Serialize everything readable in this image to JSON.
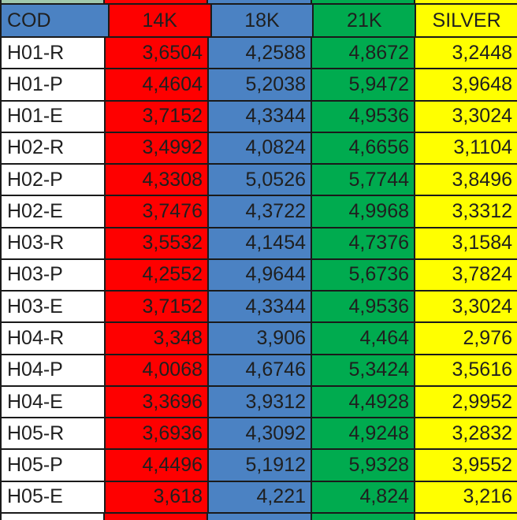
{
  "table": {
    "columns": [
      "COD",
      "14K",
      "18K",
      "21K",
      "SILVER"
    ],
    "rows": [
      [
        "H01-R",
        "3,6504",
        "4,2588",
        "4,8672",
        "3,2448"
      ],
      [
        "H01-P",
        "4,4604",
        "5,2038",
        "5,9472",
        "3,9648"
      ],
      [
        "H01-E",
        "3,7152",
        "4,3344",
        "4,9536",
        "3,3024"
      ],
      [
        "H02-R",
        "3,4992",
        "4,0824",
        "4,6656",
        "3,1104"
      ],
      [
        "H02-P",
        "4,3308",
        "5,0526",
        "5,7744",
        "3,8496"
      ],
      [
        "H02-E",
        "3,7476",
        "4,3722",
        "4,9968",
        "3,3312"
      ],
      [
        "H03-R",
        "3,5532",
        "4,1454",
        "4,7376",
        "3,1584"
      ],
      [
        "H03-P",
        "4,2552",
        "4,9644",
        "5,6736",
        "3,7824"
      ],
      [
        "H03-E",
        "3,7152",
        "4,3344",
        "4,9536",
        "3,3024"
      ],
      [
        "H04-R",
        "3,348",
        "3,906",
        "4,464",
        "2,976"
      ],
      [
        "H04-P",
        "4,0068",
        "4,6746",
        "5,3424",
        "3,5616"
      ],
      [
        "H04-E",
        "3,3696",
        "3,9312",
        "4,4928",
        "2,9952"
      ],
      [
        "H05-R",
        "3,6936",
        "4,3092",
        "4,9248",
        "3,2832"
      ],
      [
        "H05-P",
        "4,4496",
        "5,1912",
        "5,9328",
        "3,9552"
      ],
      [
        "H05-E",
        "3,618",
        "4,221",
        "4,824",
        "3,216"
      ]
    ]
  },
  "colors": {
    "header_cod_bg": "#4b82c3",
    "col_14k_bg": "#fe0000",
    "col_18k_bg": "#4b82c3",
    "col_21k_bg": "#00ab4f",
    "col_silver_bg": "#ffff00",
    "cod_cell_bg": "#ffffff",
    "top_strip_cod_bg": "#a0c8ac",
    "border": "#1a1a1a",
    "text": "#1f1f1f"
  }
}
